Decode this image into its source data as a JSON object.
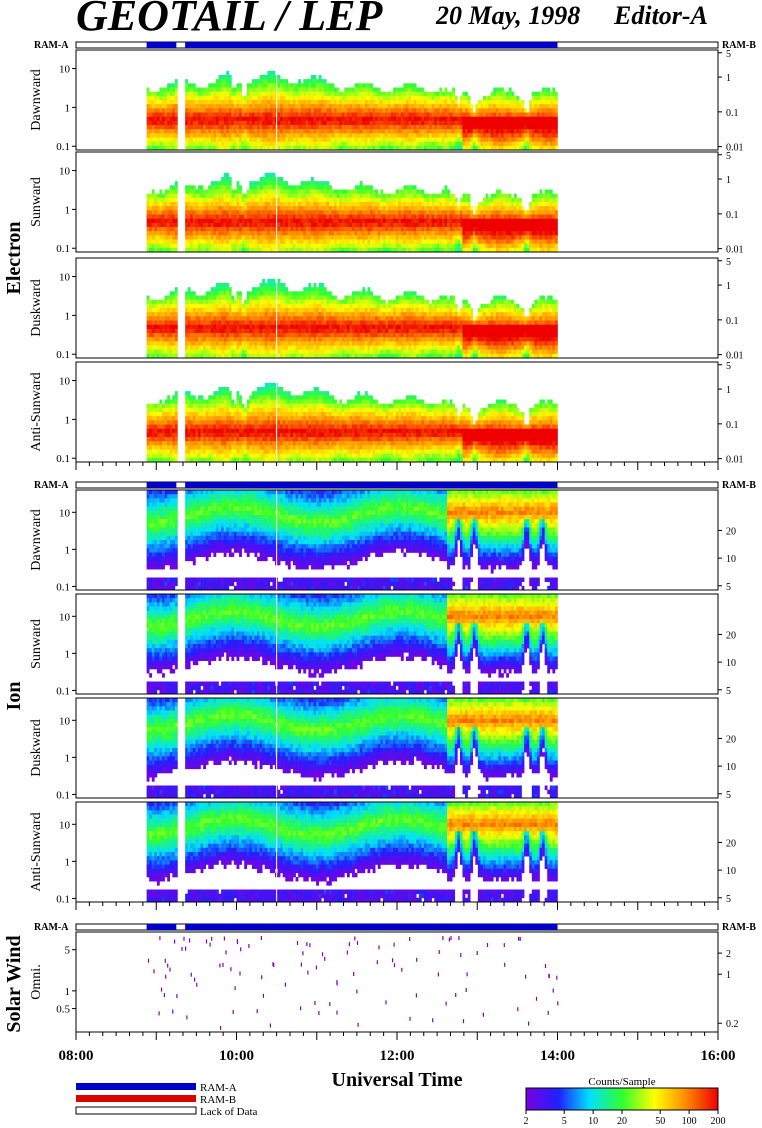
{
  "header": {
    "instrument": "GEOTAIL / LEP",
    "date": "20 May, 1998",
    "editor": "Editor-A"
  },
  "mode_labels": {
    "left": "RAM-A",
    "right": "RAM-B"
  },
  "groups": [
    {
      "name": "Electron",
      "panels": [
        "Dawnward",
        "Sunward",
        "Duskward",
        "Anti-Sunward"
      ]
    },
    {
      "name": "Ion",
      "panels": [
        "Dawnward",
        "Sunward",
        "Duskward",
        "Anti-Sunward"
      ]
    },
    {
      "name": "Solar Wind",
      "panels": [
        "Omni."
      ]
    }
  ],
  "chart_data": {
    "type": "heatmap",
    "description_of_axes": "energy-time spectrograms",
    "xlabel": "Universal Time",
    "x_ticks": [
      "08:00",
      "10:00",
      "12:00",
      "14:00",
      "16:00"
    ],
    "x_range_hours": [
      8,
      16
    ],
    "data_coverage_hours": [
      8.88,
      14.0
    ],
    "data_gap_hours": [
      [
        9.25,
        9.36
      ]
    ],
    "status_bar": {
      "ram_a_segments": [
        [
          8.88,
          9.25
        ],
        [
          9.36,
          14.0
        ]
      ]
    },
    "electron_left_ticks": [
      "0.1",
      "1",
      "10"
    ],
    "electron_left_range": [
      0.08,
      30
    ],
    "electron_right_ticks": [
      "0.01",
      "0.1",
      "1",
      "5"
    ],
    "ion_left_ticks": [
      "0.1",
      "1",
      "10"
    ],
    "ion_left_range": [
      0.08,
      40
    ],
    "ion_right_ticks": [
      "5",
      "10",
      "20"
    ],
    "sw_left_ticks": [
      "0.5",
      "1",
      "5"
    ],
    "sw_left_range": [
      0.2,
      10
    ],
    "sw_right_ticks": [
      "0.2",
      "1",
      "2"
    ],
    "colorbar": {
      "label": "Counts/Sample",
      "ticks": [
        "2",
        "5",
        "10",
        "20",
        "50",
        "100",
        "200"
      ],
      "range": [
        2,
        200
      ],
      "scale": "log"
    }
  },
  "legend": {
    "ram_a": "RAM-A",
    "ram_b": "RAM-B",
    "lack": "Lack of Data",
    "ram_a_color": "#0000cc",
    "ram_b_color": "#dd0000"
  }
}
